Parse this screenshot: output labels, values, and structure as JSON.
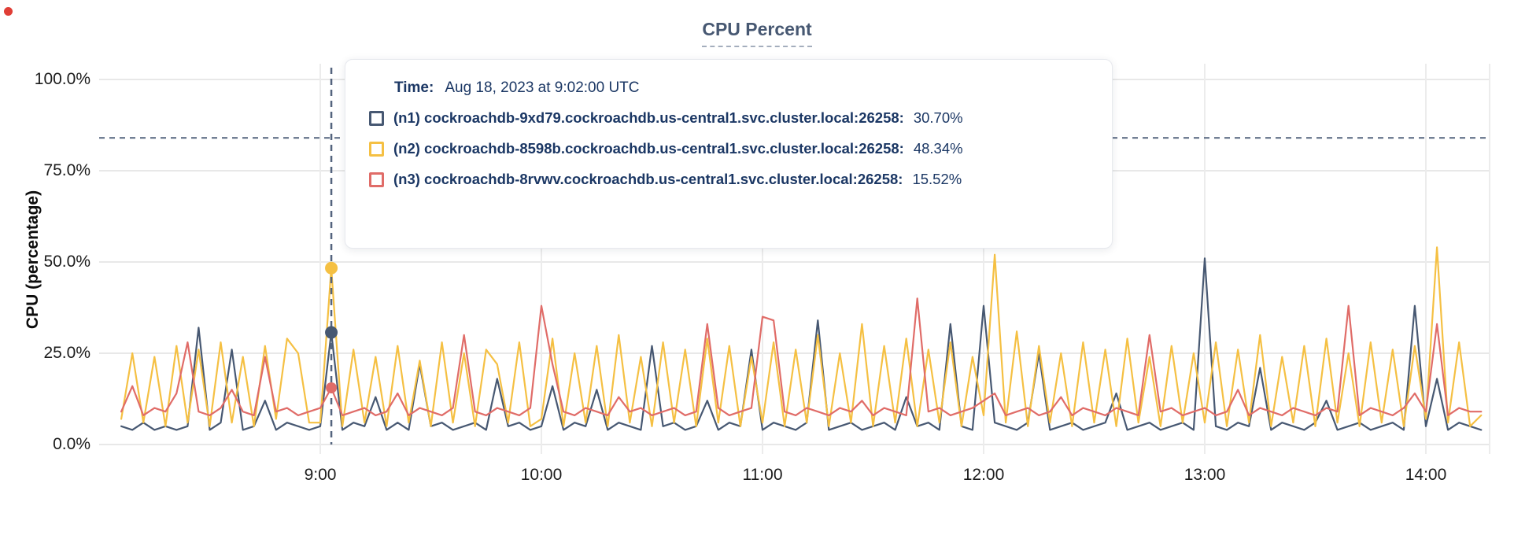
{
  "page": {
    "title_label": "CPU Percent"
  },
  "colors": {
    "title_text": "#475872",
    "tooltip_text": "#1b3764",
    "gridline": "#e8e8e8",
    "dashed_marker": "#54647e",
    "hover_line": "#54647e",
    "recording_dot": "#e03e36"
  },
  "tooltip": {
    "time_label": "Time:",
    "time_value": "Aug 18, 2023 at 9:02:00 UTC",
    "rows": [
      {
        "id": "n1",
        "label": "(n1) cockroachdb-9xd79.cockroachdb.us-central1.svc.cluster.local:26258:",
        "value": "30.70%",
        "color": "#475872"
      },
      {
        "id": "n2",
        "label": "(n2) cockroachdb-8598b.cockroachdb.us-central1.svc.cluster.local:26258:",
        "value": "48.34%",
        "color": "#F5C043"
      },
      {
        "id": "n3",
        "label": "(n3) cockroachdb-8rvwv.cockroachdb.us-central1.svc.cluster.local:26258:",
        "value": "15.52%",
        "color": "#E06C68"
      }
    ]
  },
  "chart_data": {
    "type": "line",
    "title": "CPU Percent",
    "xlabel": "",
    "ylabel": "CPU (percentage)",
    "ylim": [
      0,
      100
    ],
    "xlim_hours": [
      8.0,
      14.29
    ],
    "grid": true,
    "legend_position": "tooltip-overlay",
    "y_ticks": [
      {
        "value": 100,
        "label": "100.0%"
      },
      {
        "value": 75,
        "label": "75.0%"
      },
      {
        "value": 50,
        "label": "50.0%"
      },
      {
        "value": 25,
        "label": "25.0%"
      },
      {
        "value": 0,
        "label": "0.0%"
      }
    ],
    "x_ticks": [
      {
        "hour": 9,
        "label": "9:00"
      },
      {
        "hour": 10,
        "label": "10:00"
      },
      {
        "hour": 11,
        "label": "11:00"
      },
      {
        "hour": 12,
        "label": "12:00"
      },
      {
        "hour": 13,
        "label": "13:00"
      },
      {
        "hour": 14,
        "label": "14:00"
      }
    ],
    "x_start_hour": 8.1,
    "x_step_hour": 0.05,
    "dashed_marker_percent": 84,
    "hover": {
      "hour": 9.05,
      "time_text": "Aug 18, 2023 at 9:02:00 UTC",
      "points": [
        {
          "series": "n1",
          "value": 30.7
        },
        {
          "series": "n2",
          "value": 48.34
        },
        {
          "series": "n3",
          "value": 15.52
        }
      ]
    },
    "series": [
      {
        "id": "n1",
        "name": "(n1) cockroachdb-9xd79.cockroachdb.us-central1.svc.cluster.local:26258",
        "color": "#475872",
        "values": [
          5,
          4,
          6,
          4,
          5,
          4,
          5,
          32,
          4,
          6,
          26,
          4,
          5,
          12,
          4,
          6,
          5,
          4,
          5,
          30.7,
          4,
          6,
          5,
          13,
          4,
          6,
          4,
          22,
          5,
          6,
          4,
          5,
          6,
          4,
          18,
          5,
          6,
          4,
          5,
          16,
          4,
          6,
          5,
          15,
          4,
          6,
          5,
          4,
          27,
          5,
          6,
          4,
          5,
          12,
          4,
          6,
          5,
          26,
          4,
          6,
          5,
          4,
          6,
          34,
          4,
          5,
          6,
          4,
          5,
          6,
          4,
          13,
          5,
          6,
          4,
          33,
          5,
          4,
          38,
          6,
          5,
          4,
          6,
          25,
          4,
          5,
          6,
          4,
          5,
          6,
          14,
          4,
          5,
          6,
          4,
          5,
          6,
          4,
          51,
          5,
          4,
          6,
          5,
          21,
          4,
          6,
          5,
          4,
          6,
          12,
          4,
          5,
          6,
          4,
          5,
          6,
          4,
          38,
          5,
          18,
          4,
          6,
          5,
          4
        ]
      },
      {
        "id": "n2",
        "name": "(n2) cockroachdb-8598b.cockroachdb.us-central1.svc.cluster.local:26258",
        "color": "#F5C043",
        "values": [
          7,
          25,
          6,
          24,
          5,
          27,
          6,
          26,
          5,
          28,
          6,
          24,
          5,
          27,
          7,
          29,
          25,
          6,
          6,
          48.34,
          5,
          26,
          6,
          24,
          5,
          27,
          6,
          23,
          5,
          28,
          6,
          25,
          5,
          26,
          22,
          6,
          28,
          5,
          7,
          29,
          5,
          25,
          6,
          27,
          5,
          30,
          6,
          24,
          5,
          28,
          6,
          26,
          5,
          29,
          6,
          27,
          5,
          24,
          6,
          28,
          5,
          26,
          6,
          30,
          5,
          25,
          6,
          33,
          5,
          27,
          6,
          29,
          5,
          26,
          6,
          28,
          5,
          24,
          8,
          52,
          6,
          31,
          5,
          27,
          6,
          25,
          5,
          28,
          6,
          26,
          5,
          29,
          6,
          24,
          5,
          27,
          6,
          25,
          6,
          28,
          5,
          26,
          6,
          30,
          5,
          24,
          6,
          27,
          5,
          29,
          6,
          25,
          5,
          28,
          6,
          26,
          5,
          27,
          7,
          54,
          6,
          28,
          5,
          8
        ]
      },
      {
        "id": "n3",
        "name": "(n3) cockroachdb-8rvwv.cockroachdb.us-central1.svc.cluster.local:26258",
        "color": "#E06C68",
        "values": [
          9,
          16,
          8,
          10,
          9,
          14,
          28,
          9,
          8,
          10,
          15,
          9,
          8,
          24,
          9,
          10,
          8,
          9,
          10,
          15.52,
          8,
          9,
          10,
          8,
          9,
          14,
          8,
          10,
          9,
          8,
          10,
          30,
          9,
          8,
          10,
          9,
          8,
          10,
          38,
          22,
          9,
          8,
          10,
          9,
          8,
          13,
          9,
          10,
          8,
          9,
          10,
          8,
          9,
          33,
          10,
          8,
          9,
          10,
          35,
          34,
          9,
          8,
          10,
          9,
          8,
          10,
          9,
          12,
          8,
          10,
          9,
          8,
          40,
          9,
          10,
          8,
          9,
          10,
          12,
          14,
          8,
          9,
          10,
          8,
          9,
          13,
          8,
          10,
          9,
          8,
          10,
          9,
          8,
          30,
          9,
          10,
          8,
          9,
          10,
          8,
          9,
          15,
          8,
          10,
          9,
          8,
          10,
          9,
          8,
          10,
          9,
          38,
          8,
          10,
          9,
          8,
          10,
          14,
          9,
          33,
          8,
          10,
          9,
          9
        ]
      }
    ]
  }
}
